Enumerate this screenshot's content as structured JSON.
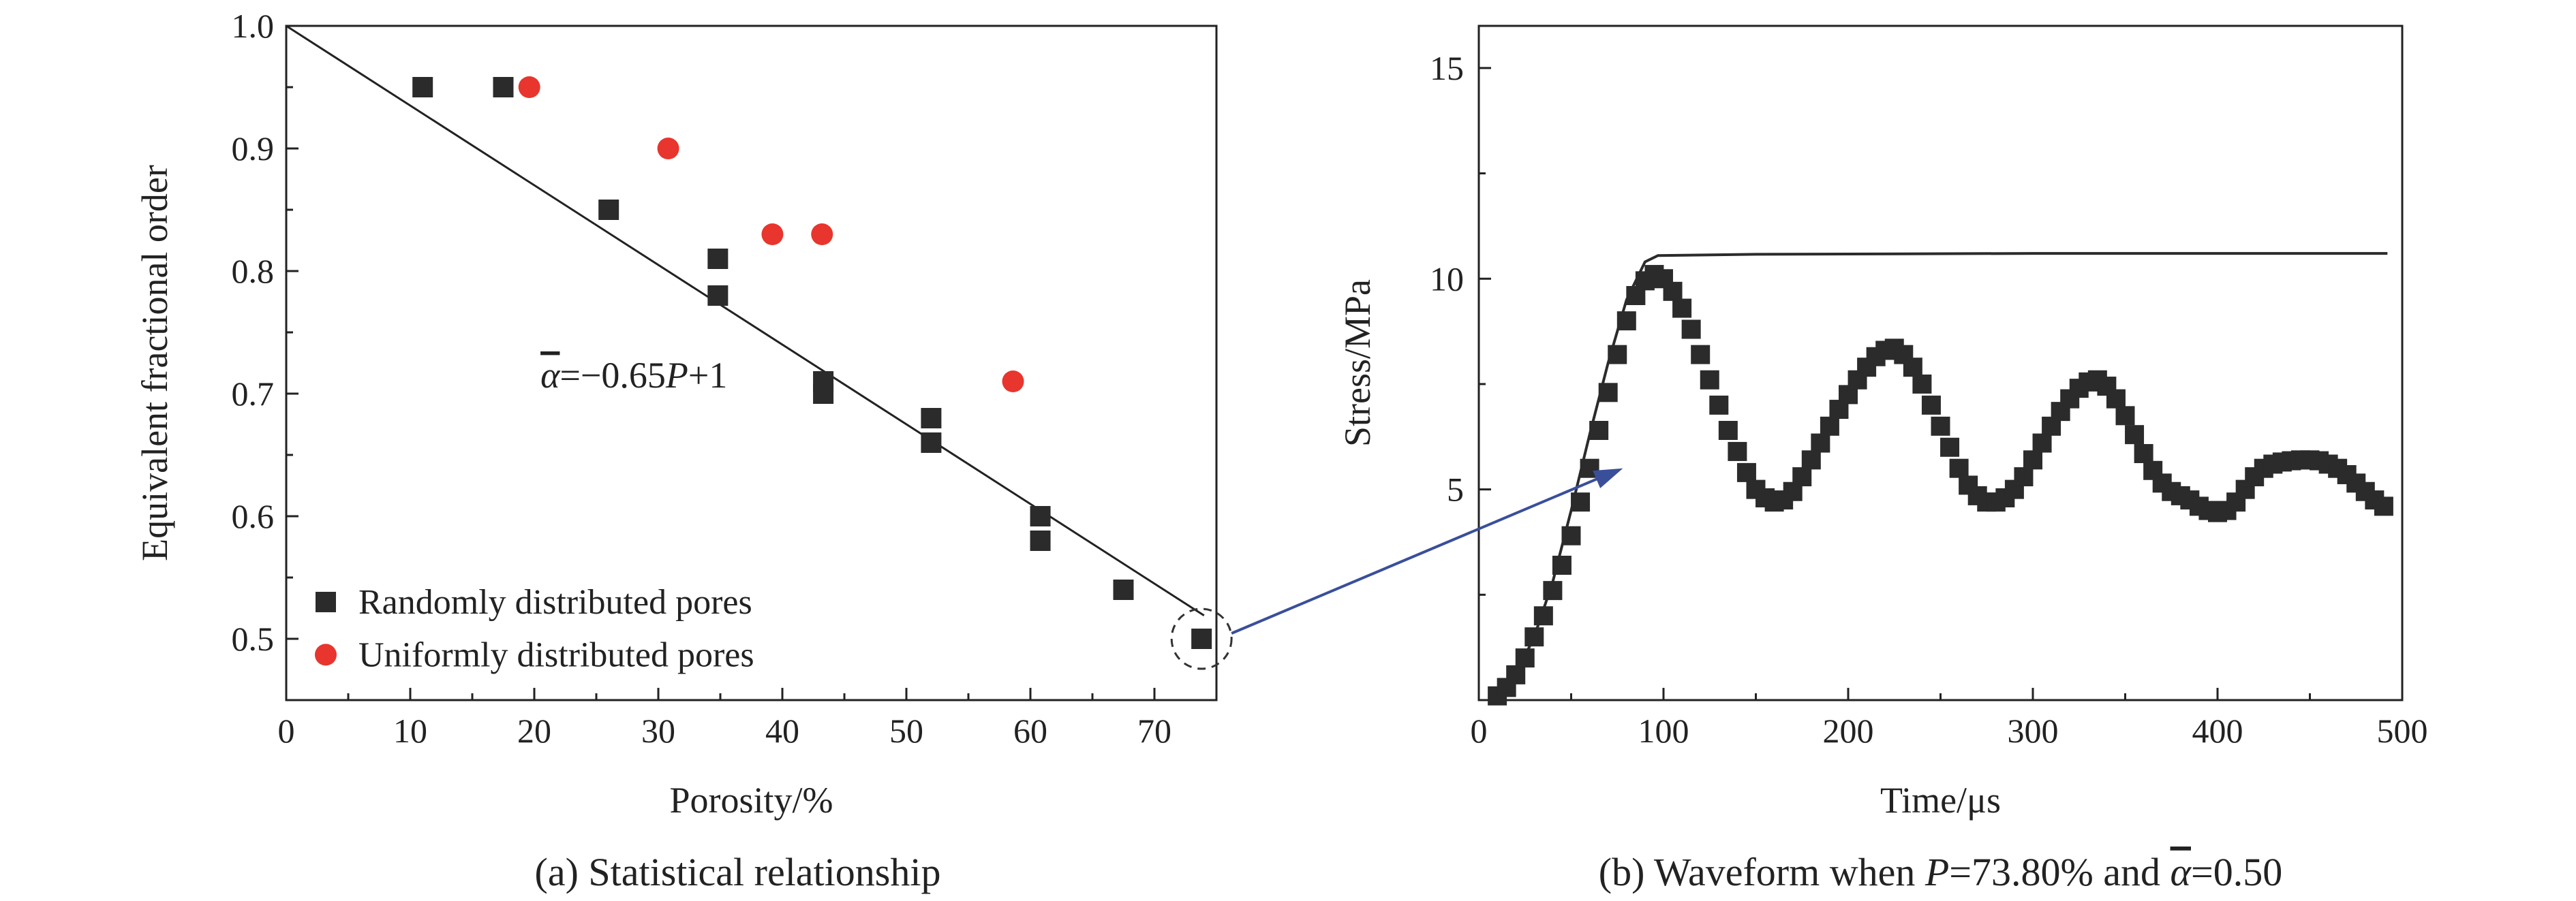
{
  "chart_data": [
    {
      "type": "scatter",
      "xlabel": "Porosity/%",
      "ylabel": "Equivalent fractional order",
      "caption": "(a) Statistical relationship",
      "xlim": [
        0,
        75
      ],
      "ylim": [
        0.45,
        1.0
      ],
      "xticks": [
        "0",
        "10",
        "20",
        "30",
        "40",
        "50",
        "60",
        "70"
      ],
      "yticks": [
        "0.5",
        "0.6",
        "0.7",
        "0.8",
        "0.9",
        "1.0"
      ],
      "legend_position": "bottom-left",
      "series": [
        {
          "name": "Randomly distributed pores",
          "marker": "square",
          "color": "#2b2b2b",
          "points": [
            [
              11,
              0.95
            ],
            [
              17.5,
              0.95
            ],
            [
              26,
              0.85
            ],
            [
              34.8,
              0.81
            ],
            [
              34.8,
              0.78
            ],
            [
              43.3,
              0.71
            ],
            [
              43.3,
              0.7
            ],
            [
              52,
              0.68
            ],
            [
              52,
              0.66
            ],
            [
              60.8,
              0.6
            ],
            [
              60.8,
              0.58
            ],
            [
              67.5,
              0.54
            ],
            [
              73.8,
              0.5
            ]
          ]
        },
        {
          "name": "Uniformly distributed pores",
          "marker": "circle",
          "color": "#e8352d",
          "points": [
            [
              19.6,
              0.95
            ],
            [
              30.8,
              0.9
            ],
            [
              39.2,
              0.83
            ],
            [
              43.2,
              0.83
            ],
            [
              58.6,
              0.71
            ]
          ]
        }
      ],
      "fit_line": {
        "slope": -0.65,
        "intercept": 1,
        "x_range": [
          0,
          74
        ]
      },
      "annotation": {
        "parts": [
          {
            "text": "α",
            "style": "italic-overline"
          },
          {
            "text": "=−0.65",
            "style": "normal"
          },
          {
            "text": "P",
            "style": "italic"
          },
          {
            "text": "+1",
            "style": "normal"
          }
        ]
      }
    },
    {
      "type": "line",
      "xlabel": "Time/μs",
      "ylabel": "Stress/MPa",
      "caption_parts": [
        {
          "text": "(b) Waveform when ",
          "style": "normal"
        },
        {
          "text": "P",
          "style": "italic"
        },
        {
          "text": "=73.80% and ",
          "style": "normal"
        },
        {
          "text": "α",
          "style": "italic-overline"
        },
        {
          "text": "=0.50",
          "style": "normal"
        }
      ],
      "xlim": [
        0,
        500
      ],
      "ylim": [
        0,
        16
      ],
      "xticks": [
        "0",
        "100",
        "200",
        "300",
        "400",
        "500"
      ],
      "yticks": [
        "5",
        "10",
        "15"
      ],
      "series": [
        {
          "name": "",
          "style": "line",
          "color": "#2b2b2b",
          "points": [
            [
              10,
              0
            ],
            [
              20,
              0.6
            ],
            [
              30,
              1.5
            ],
            [
              40,
              2.8
            ],
            [
              50,
              4.5
            ],
            [
              60,
              6.3
            ],
            [
              70,
              8.0
            ],
            [
              80,
              9.5
            ],
            [
              90,
              10.4
            ],
            [
              97,
              10.55
            ],
            [
              150,
              10.58
            ],
            [
              300,
              10.6
            ],
            [
              492,
              10.6
            ]
          ]
        },
        {
          "name": "",
          "style": "markers",
          "color": "#2b2b2b",
          "points": [
            [
              10,
              0.1
            ],
            [
              15,
              0.3
            ],
            [
              20,
              0.6
            ],
            [
              25,
              1.0
            ],
            [
              30,
              1.5
            ],
            [
              35,
              2.0
            ],
            [
              40,
              2.6
            ],
            [
              45,
              3.2
            ],
            [
              50,
              3.9
            ],
            [
              55,
              4.7
            ],
            [
              60,
              5.5
            ],
            [
              65,
              6.4
            ],
            [
              70,
              7.3
            ],
            [
              75,
              8.2
            ],
            [
              80,
              9.0
            ],
            [
              85,
              9.6
            ],
            [
              90,
              9.95
            ],
            [
              95,
              10.1
            ],
            [
              100,
              10.0
            ],
            [
              105,
              9.7
            ],
            [
              110,
              9.3
            ],
            [
              115,
              8.8
            ],
            [
              120,
              8.2
            ],
            [
              125,
              7.6
            ],
            [
              130,
              7.0
            ],
            [
              135,
              6.4
            ],
            [
              140,
              5.9
            ],
            [
              145,
              5.4
            ],
            [
              150,
              5.0
            ],
            [
              155,
              4.8
            ],
            [
              160,
              4.7
            ],
            [
              165,
              4.75
            ],
            [
              170,
              4.95
            ],
            [
              175,
              5.3
            ],
            [
              180,
              5.7
            ],
            [
              185,
              6.1
            ],
            [
              190,
              6.5
            ],
            [
              195,
              6.9
            ],
            [
              200,
              7.25
            ],
            [
              205,
              7.6
            ],
            [
              210,
              7.9
            ],
            [
              215,
              8.15
            ],
            [
              220,
              8.3
            ],
            [
              225,
              8.35
            ],
            [
              230,
              8.2
            ],
            [
              235,
              7.9
            ],
            [
              240,
              7.5
            ],
            [
              245,
              7.0
            ],
            [
              250,
              6.5
            ],
            [
              255,
              6.0
            ],
            [
              260,
              5.5
            ],
            [
              265,
              5.1
            ],
            [
              270,
              4.85
            ],
            [
              275,
              4.7
            ],
            [
              280,
              4.7
            ],
            [
              285,
              4.8
            ],
            [
              290,
              5.0
            ],
            [
              295,
              5.3
            ],
            [
              300,
              5.7
            ],
            [
              305,
              6.1
            ],
            [
              310,
              6.5
            ],
            [
              315,
              6.85
            ],
            [
              320,
              7.15
            ],
            [
              325,
              7.4
            ],
            [
              330,
              7.55
            ],
            [
              335,
              7.6
            ],
            [
              340,
              7.45
            ],
            [
              345,
              7.15
            ],
            [
              350,
              6.75
            ],
            [
              355,
              6.3
            ],
            [
              360,
              5.85
            ],
            [
              365,
              5.45
            ],
            [
              370,
              5.15
            ],
            [
              375,
              4.95
            ],
            [
              380,
              4.85
            ],
            [
              385,
              4.75
            ],
            [
              390,
              4.6
            ],
            [
              395,
              4.5
            ],
            [
              400,
              4.45
            ],
            [
              405,
              4.5
            ],
            [
              410,
              4.7
            ],
            [
              415,
              5.0
            ],
            [
              420,
              5.3
            ],
            [
              425,
              5.5
            ],
            [
              430,
              5.6
            ],
            [
              435,
              5.65
            ],
            [
              440,
              5.68
            ],
            [
              445,
              5.7
            ],
            [
              450,
              5.7
            ],
            [
              455,
              5.68
            ],
            [
              460,
              5.6
            ],
            [
              465,
              5.5
            ],
            [
              470,
              5.35
            ],
            [
              475,
              5.15
            ],
            [
              480,
              4.95
            ],
            [
              485,
              4.75
            ],
            [
              490,
              4.6
            ]
          ]
        }
      ]
    }
  ],
  "connector": {
    "color": "#3a4f9a"
  }
}
